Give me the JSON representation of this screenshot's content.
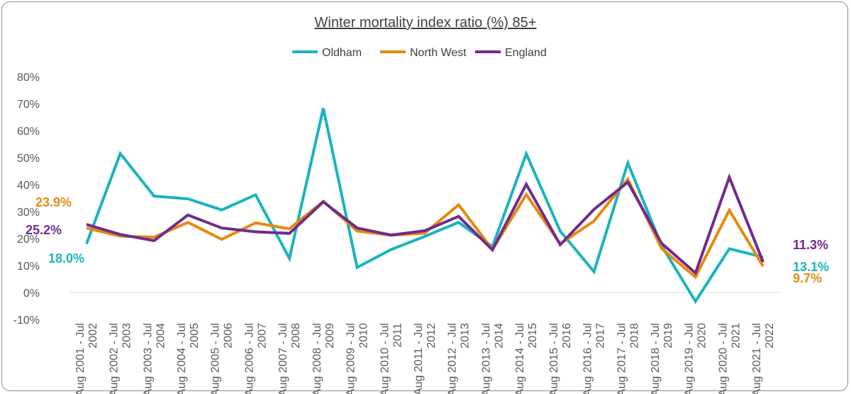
{
  "chart_data": {
    "type": "line",
    "title": "Winter mortality index ratio (%) 85+",
    "xlabel": "",
    "ylabel": "",
    "ylim": [
      -10,
      80
    ],
    "yticks": [
      -10,
      0,
      10,
      20,
      30,
      40,
      50,
      60,
      70,
      80
    ],
    "ytick_labels": [
      "-10%",
      "0%",
      "10%",
      "20%",
      "30%",
      "40%",
      "50%",
      "60%",
      "70%",
      "80%"
    ],
    "grid": false,
    "legend_position": "top",
    "categories": [
      "Aug 2001 - Jul 2002",
      "Aug 2002 - Jul 2003",
      "Aug 2003 - Jul 2004",
      "Aug 2004 - Jul 2005",
      "Aug 2005 - Jul 2006",
      "Aug 2006 - Jul 2007",
      "Aug 2007 - Jul 2008",
      "Aug 2008 - Jul 2009",
      "Aug 2009 - Jul 2010",
      "Aug 2010 - Jul 2011",
      "Aug 2011 - Jul 2012",
      "Aug 2012 - Jul 2013",
      "Aug 2013 - Jul 2014",
      "Aug 2014 - Jul 2015",
      "Aug 2015 - Jul 2016",
      "Aug 2016 - Jul 2017",
      "Aug 2017 - Jul 2018",
      "Aug 2018 - Jul 2019",
      "Aug 2019 - Jul 2020",
      "Aug 2020 - Jul 2021",
      "Aug 2021 - Jul 2022"
    ],
    "category_lines": [
      [
        "Aug 2001 - Jul",
        "2002"
      ],
      [
        "Aug 2002 - Jul",
        "2003"
      ],
      [
        "Aug 2003 - Jul",
        "2004"
      ],
      [
        "Aug 2004 - Jul",
        "2005"
      ],
      [
        "Aug 2005 - Jul",
        "2006"
      ],
      [
        "Aug 2006 - Jul",
        "2007"
      ],
      [
        "Aug 2007 - Jul",
        "2008"
      ],
      [
        "Aug 2008 - Jul",
        "2009"
      ],
      [
        "Aug 2009 - Jul",
        "2010"
      ],
      [
        "Aug 2010 - Jul",
        "2011"
      ],
      [
        "Aug 2011 - Jul",
        "2012"
      ],
      [
        "Aug 2012 - Jul",
        "2013"
      ],
      [
        "Aug 2013 - Jul",
        "2014"
      ],
      [
        "Aug 2014 - Jul",
        "2015"
      ],
      [
        "Aug 2015 - Jul",
        "2016"
      ],
      [
        "Aug 2016 - Jul",
        "2017"
      ],
      [
        "Aug 2017 - Jul",
        "2018"
      ],
      [
        "Aug 2018 - Jul",
        "2019"
      ],
      [
        "Aug 2019 - Jul",
        "2020"
      ],
      [
        "Aug 2020 - Jul",
        "2021"
      ],
      [
        "Aug 2021 - Jul",
        "2022"
      ]
    ],
    "series": [
      {
        "name": "Oldham",
        "color": "#1bb3bf",
        "values": [
          18.0,
          51.5,
          35.7,
          34.7,
          30.6,
          36.2,
          12.6,
          68.3,
          9.3,
          15.9,
          20.8,
          26.0,
          17.0,
          51.4,
          22.8,
          7.7,
          48.0,
          17.3,
          -3.3,
          16.2,
          13.1
        ],
        "end_labels": [
          {
            "index": 0,
            "text": "18.0%"
          },
          {
            "index": 20,
            "text": "13.1%"
          }
        ]
      },
      {
        "name": "North West",
        "color": "#e6890f",
        "values": [
          23.9,
          20.9,
          20.5,
          26.0,
          19.7,
          25.8,
          23.6,
          33.8,
          22.8,
          21.2,
          22.0,
          32.5,
          15.9,
          36.3,
          18.0,
          26.5,
          42.0,
          16.3,
          5.7,
          30.5,
          9.7
        ],
        "end_labels": [
          {
            "index": 0,
            "text": "23.9%"
          },
          {
            "index": 20,
            "text": "9.7%"
          }
        ]
      },
      {
        "name": "England",
        "color": "#702b8c",
        "values": [
          25.2,
          21.5,
          19.2,
          28.7,
          23.9,
          22.5,
          21.9,
          33.6,
          23.9,
          21.3,
          22.9,
          28.2,
          15.8,
          40.1,
          17.7,
          30.8,
          40.9,
          18.2,
          7.2,
          42.7,
          11.3
        ],
        "end_labels": [
          {
            "index": 0,
            "text": "25.2%"
          },
          {
            "index": 20,
            "text": "11.3%"
          }
        ]
      }
    ]
  }
}
